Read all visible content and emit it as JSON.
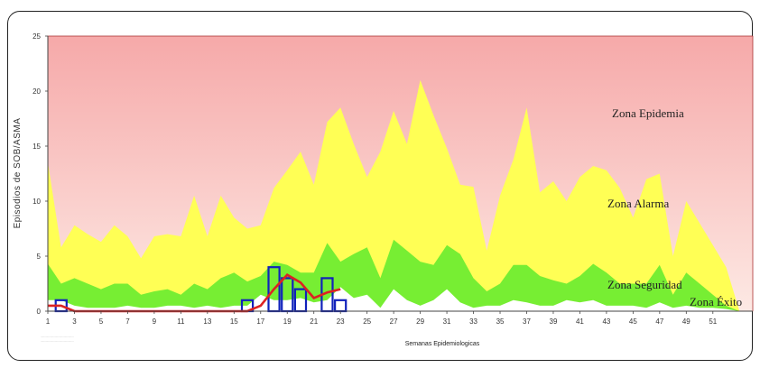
{
  "chart_data": {
    "type": "area",
    "ylabel": "Episodios  de  SOB/ASMA",
    "xlabel": "Semanas  Epidemiologicas",
    "xlim": [
      1,
      54
    ],
    "ylim": [
      0,
      25
    ],
    "y_ticks": [
      "0",
      "5",
      "10",
      "15",
      "20",
      "25"
    ],
    "x_ticks": [
      "1",
      "3",
      "5",
      "7",
      "9",
      "11",
      "13",
      "15",
      "17",
      "19",
      "21",
      "23",
      "25",
      "27",
      "29",
      "31",
      "33",
      "35",
      "37",
      "39",
      "41",
      "43",
      "45",
      "47",
      "49",
      "51"
    ],
    "x_tick_values": [
      1,
      3,
      5,
      7,
      9,
      11,
      13,
      15,
      17,
      19,
      21,
      23,
      25,
      27,
      29,
      31,
      33,
      35,
      37,
      39,
      41,
      43,
      45,
      47,
      49,
      51
    ],
    "zone_labels": {
      "epidemia": "Zona Epidemia",
      "alarma": "Zona Alarma",
      "seguridad": "Zona Seguridad",
      "exito": "Zona Éxito"
    },
    "footnote": [
      "............................................",
      "............................................"
    ],
    "colors": {
      "epidemia_top": "#f6a9a9",
      "epidemia_bottom": "#fde9e4",
      "alarma": "#ffff55",
      "seguridad": "#77ee33",
      "exito": "#ffffff",
      "bars": "#1122bb",
      "line": "#dd2222"
    },
    "series": [
      {
        "name": "Zona Alarma",
        "x": [
          1,
          2,
          3,
          4,
          5,
          6,
          7,
          8,
          9,
          10,
          11,
          12,
          13,
          14,
          15,
          16,
          17,
          18,
          19,
          20,
          21,
          22,
          23,
          24,
          25,
          26,
          27,
          28,
          29,
          30,
          31,
          32,
          33,
          34,
          35,
          36,
          37,
          38,
          39,
          40,
          41,
          42,
          43,
          44,
          45,
          46,
          47,
          48,
          49,
          50,
          51,
          52,
          53
        ],
        "values": [
          13.5,
          5.8,
          7.8,
          7,
          6.3,
          7.8,
          6.8,
          4.8,
          6.8,
          7,
          6.8,
          10.5,
          6.8,
          10.5,
          8.5,
          7.5,
          7.8,
          11.2,
          12.8,
          14.5,
          11.5,
          17.2,
          18.5,
          15.2,
          12.2,
          14.5,
          18.2,
          15.2,
          21,
          17.8,
          14.8,
          11.5,
          11.3,
          5.5,
          10.5,
          13.8,
          18.5,
          10.8,
          11.8,
          10,
          12.2,
          13.2,
          12.8,
          11.2,
          8.5,
          12,
          12.5,
          5,
          10,
          8,
          6,
          4,
          0
        ]
      },
      {
        "name": "Zona Seguridad",
        "x": [
          1,
          2,
          3,
          4,
          5,
          6,
          7,
          8,
          9,
          10,
          11,
          12,
          13,
          14,
          15,
          16,
          17,
          18,
          19,
          20,
          21,
          22,
          23,
          24,
          25,
          26,
          27,
          28,
          29,
          30,
          31,
          32,
          33,
          34,
          35,
          36,
          37,
          38,
          39,
          40,
          41,
          42,
          43,
          44,
          45,
          46,
          47,
          48,
          49,
          50,
          51,
          52,
          53
        ],
        "values": [
          4.3,
          2.5,
          3,
          2.5,
          2,
          2.5,
          2.5,
          1.5,
          1.8,
          2,
          1.5,
          2.5,
          2,
          3,
          3.5,
          2.7,
          3.2,
          4.5,
          4.2,
          3.5,
          3.5,
          6.2,
          4.5,
          5.2,
          5.8,
          3,
          6.5,
          5.5,
          4.5,
          4.2,
          6,
          5.2,
          3,
          1.8,
          2.5,
          4.2,
          4.2,
          3.2,
          2.8,
          2.5,
          3.2,
          4.3,
          3.5,
          2.5,
          2.5,
          2.5,
          4.2,
          1.5,
          3.5,
          2.5,
          1.5,
          0.5,
          0
        ]
      },
      {
        "name": "Zona Éxito",
        "x": [
          1,
          2,
          3,
          4,
          5,
          6,
          7,
          8,
          9,
          10,
          11,
          12,
          13,
          14,
          15,
          16,
          17,
          18,
          19,
          20,
          21,
          22,
          23,
          24,
          25,
          26,
          27,
          28,
          29,
          30,
          31,
          32,
          33,
          34,
          35,
          36,
          37,
          38,
          39,
          40,
          41,
          42,
          43,
          44,
          45,
          46,
          47,
          48,
          49,
          50,
          51,
          52,
          53
        ],
        "values": [
          1,
          1,
          0.5,
          0.3,
          0.3,
          0.3,
          0.5,
          0.3,
          0.3,
          0.5,
          0.5,
          0.3,
          0.5,
          0.3,
          0.5,
          0.5,
          1.5,
          1,
          1,
          1.2,
          0.8,
          1,
          2.2,
          1.2,
          1.5,
          0.3,
          2,
          1,
          0.5,
          1,
          2,
          0.8,
          0.3,
          0.5,
          0.5,
          1,
          0.8,
          0.5,
          0.5,
          1,
          0.8,
          1,
          0.5,
          0.5,
          0.5,
          0.3,
          0.8,
          0.3,
          0.5,
          0.3,
          0.3,
          0.2,
          0
        ]
      },
      {
        "name": "bars",
        "x": [
          2,
          16,
          18,
          19,
          20,
          22,
          23
        ],
        "values": [
          1,
          1,
          4,
          3,
          2,
          3,
          1
        ]
      },
      {
        "name": "line",
        "x": [
          1,
          2,
          3,
          4,
          5,
          6,
          7,
          8,
          9,
          10,
          11,
          12,
          13,
          14,
          15,
          16,
          17,
          18,
          19,
          20,
          21,
          22,
          23
        ],
        "values": [
          0.5,
          0.5,
          0,
          0,
          0,
          0,
          0,
          0,
          0,
          0,
          0,
          0,
          0,
          0,
          0,
          0,
          0.5,
          2,
          3.3,
          2.6,
          1.2,
          1.7,
          2
        ]
      }
    ]
  }
}
